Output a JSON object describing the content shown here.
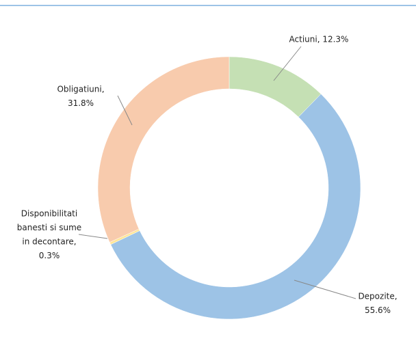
{
  "chart_data": {
    "type": "donut",
    "values": [
      12.3,
      55.6,
      0.3,
      31.8
    ],
    "value_labels": [
      [
        "Actiuni, 12.3%"
      ],
      [
        "Depozite,",
        "55.6%"
      ],
      [
        "Disponibilitati",
        "banesti si sume",
        "in decontare,",
        "0.3%"
      ],
      [
        "Obligatiuni,",
        "31.8%"
      ]
    ],
    "colors": [
      "#c5e0b4",
      "#9dc3e6",
      "#ffe699",
      "#f8cbad"
    ]
  }
}
